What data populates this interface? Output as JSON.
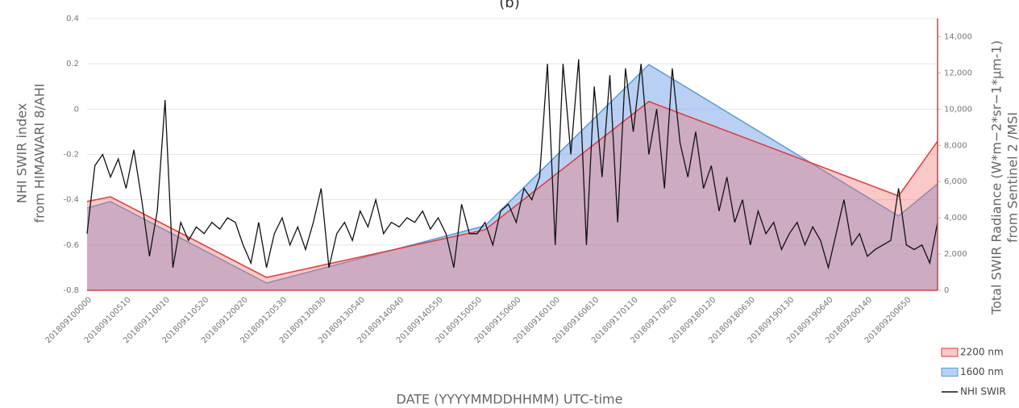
{
  "chart_data": {
    "type": "line",
    "title": "(b)",
    "xlabel": "DATE (YYYYMMDDHHMM) UTC-time",
    "ylabel": [
      "NHI SWIR index",
      "from HIMAWARI 8/AHI"
    ],
    "y2label": [
      "Total SWIR Radiance (W*m−2*sr−1*µm-1)",
      "from Sentinel 2 /MSI"
    ],
    "categories": [
      "201809100000",
      null,
      null,
      null,
      null,
      "201809100510",
      null,
      null,
      null,
      null,
      "201809110010",
      null,
      null,
      null,
      null,
      "201809110520",
      null,
      null,
      null,
      null,
      "201809120020",
      null,
      null,
      null,
      null,
      "201809120530",
      null,
      null,
      null,
      null,
      "201809130030",
      null,
      null,
      null,
      null,
      "201809130540",
      null,
      null,
      null,
      null,
      "201809140040",
      null,
      null,
      null,
      null,
      "201809140550",
      null,
      null,
      null,
      null,
      "201809150050",
      null,
      null,
      null,
      null,
      "201809150600",
      null,
      null,
      null,
      null,
      "201809160100",
      null,
      null,
      null,
      null,
      "201809160610",
      null,
      null,
      null,
      null,
      "201809170110",
      null,
      null,
      null,
      null,
      "201809170620",
      null,
      null,
      null,
      null,
      "201809180120",
      null,
      null,
      null,
      null,
      "201809180630",
      null,
      null,
      null,
      null,
      "201809190130",
      null,
      null,
      null,
      null,
      "201809190640",
      null,
      null,
      null,
      null,
      "201809200140",
      null,
      null,
      null,
      null,
      "201809200650",
      null,
      null,
      null,
      null
    ],
    "ylim": [
      -0.8,
      0.4
    ],
    "yticks": [
      -0.8,
      -0.6,
      -0.4,
      -0.2,
      0,
      0.2,
      0.4
    ],
    "y2lim": [
      0,
      15000
    ],
    "y2ticks": [
      0,
      {
        "value": 2000,
        "label": "2,000"
      },
      {
        "value": 4000,
        "label": "4,000"
      },
      {
        "value": 6000,
        "label": "6,000"
      },
      {
        "value": 8000,
        "label": "8,000"
      },
      {
        "value": 10000,
        "label": "10,000"
      },
      {
        "value": 12000,
        "label": "12,000"
      },
      {
        "value": 14000,
        "label": "14,000"
      }
    ],
    "grid": true,
    "legend": "bottom-right",
    "series": [
      {
        "name": "2200 nm",
        "color": "#e03a3a",
        "fill": "rgba(240,110,110,0.38)",
        "axis": "y2",
        "kind": "area",
        "x": [
          0,
          3,
          23,
          51,
          72,
          104,
          109
        ],
        "values": [
          4900,
          5160,
          710,
          3340,
          10420,
          5210,
          8230
        ]
      },
      {
        "name": "1600 nm",
        "color": "#5b9bd5",
        "fill": "rgba(100,150,230,0.45)",
        "axis": "y2",
        "kind": "area",
        "x": [
          0,
          3,
          23,
          51,
          72,
          104,
          109
        ],
        "values": [
          4540,
          4900,
          400,
          3560,
          12460,
          4100,
          5875
        ]
      },
      {
        "name": "NHI SWIR",
        "color": "#111111",
        "kind": "line",
        "values": [
          -0.55,
          -0.25,
          -0.2,
          -0.3,
          -0.22,
          -0.35,
          -0.18,
          -0.4,
          -0.65,
          -0.45,
          0.04,
          -0.7,
          -0.5,
          -0.58,
          -0.52,
          -0.55,
          -0.5,
          -0.53,
          -0.48,
          -0.5,
          -0.6,
          -0.68,
          -0.5,
          -0.7,
          -0.55,
          -0.48,
          -0.6,
          -0.52,
          -0.62,
          -0.5,
          -0.35,
          -0.7,
          -0.55,
          -0.5,
          -0.58,
          -0.45,
          -0.52,
          -0.4,
          -0.55,
          -0.5,
          -0.52,
          -0.48,
          -0.5,
          -0.45,
          -0.53,
          -0.48,
          -0.55,
          -0.7,
          -0.42,
          -0.55,
          -0.55,
          -0.5,
          -0.6,
          -0.45,
          -0.42,
          -0.5,
          -0.35,
          -0.4,
          -0.3,
          0.2,
          -0.6,
          0.2,
          -0.2,
          0.22,
          -0.6,
          0.1,
          -0.3,
          0.15,
          -0.5,
          0.18,
          -0.1,
          0.2,
          -0.2,
          0.0,
          -0.35,
          0.18,
          -0.15,
          -0.3,
          -0.1,
          -0.35,
          -0.25,
          -0.45,
          -0.3,
          -0.5,
          -0.4,
          -0.6,
          -0.45,
          -0.55,
          -0.5,
          -0.62,
          -0.55,
          -0.5,
          -0.6,
          -0.52,
          -0.58,
          -0.7,
          -0.55,
          -0.4,
          -0.6,
          -0.55,
          -0.65,
          -0.62,
          -0.6,
          -0.58,
          -0.35,
          -0.6,
          -0.62,
          -0.6,
          -0.68,
          -0.5
        ]
      }
    ]
  }
}
